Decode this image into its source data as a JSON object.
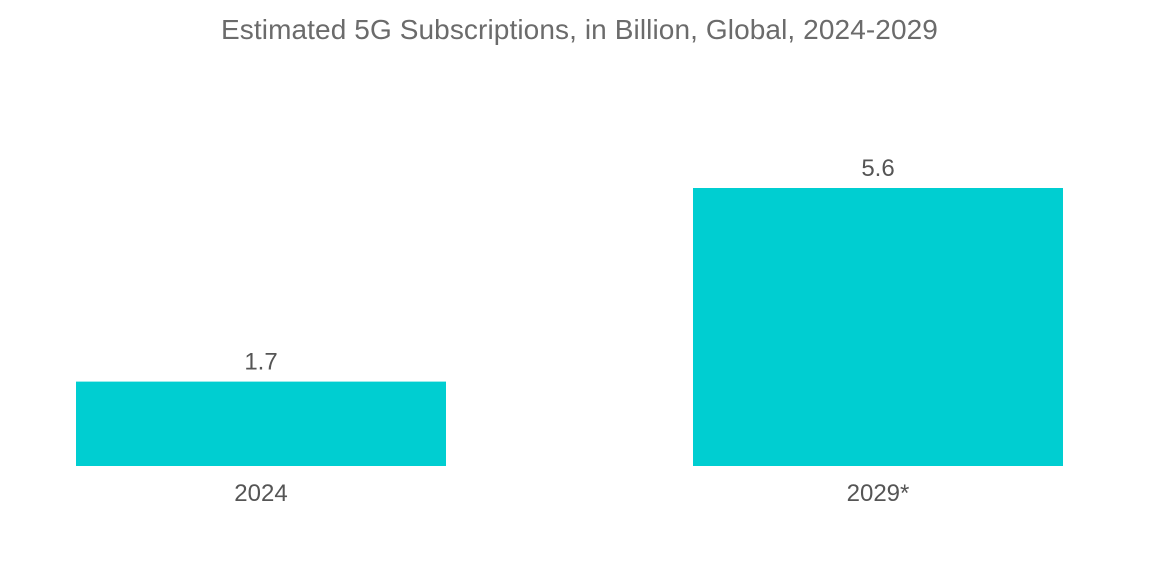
{
  "chart_data": {
    "type": "bar",
    "title": "Estimated 5G Subscriptions, in Billion, Global, 2024-2029",
    "categories": [
      "2024",
      "2029*"
    ],
    "values": [
      1.7,
      5.6
    ],
    "data_labels": [
      "1.7",
      "5.6"
    ],
    "xlabel": "",
    "ylabel": "",
    "ylim": [
      0,
      5.6
    ],
    "grid": false,
    "legend": "none",
    "bar_color": "#00ced1"
  }
}
